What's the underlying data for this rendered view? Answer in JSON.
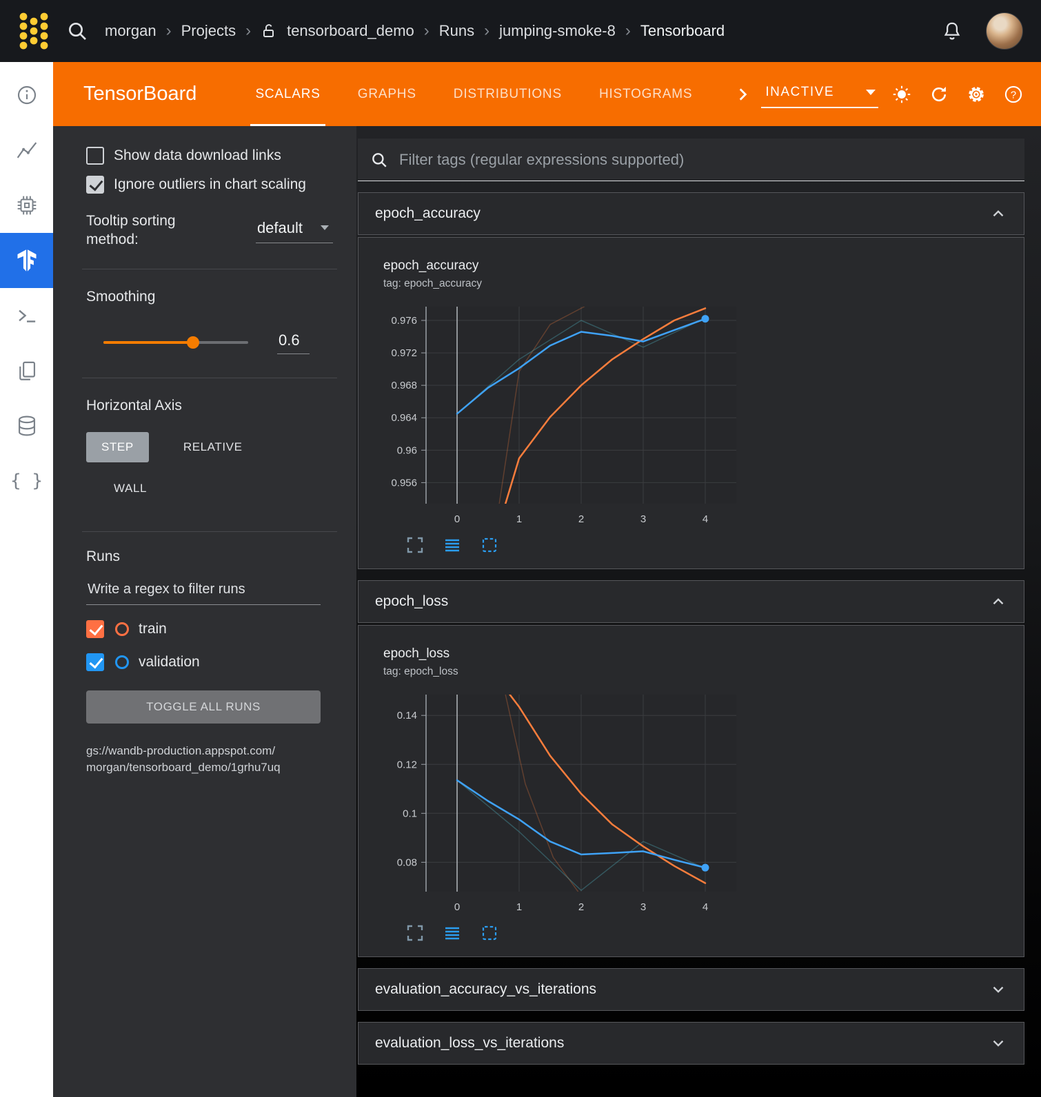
{
  "colors": {
    "header_orange": "#f76d00",
    "rail_active_blue": "#2170e8",
    "train_color": "#ff7043",
    "validation_color": "#2196f3",
    "train_line": "#f97d3c",
    "validation_line": "#3fa2f7",
    "logo_yellow": "#ffcc33"
  },
  "topbar": {
    "separator": "›",
    "breadcrumb": [
      "morgan",
      "Projects",
      "tensorboard_demo",
      "Runs",
      "jumping-smoke-8",
      "Tensorboard"
    ]
  },
  "tb_header": {
    "title": "TensorBoard",
    "tabs": [
      "SCALARS",
      "GRAPHS",
      "DISTRIBUTIONS",
      "HISTOGRAMS"
    ],
    "active_tab": "SCALARS",
    "status_label": "INACTIVE"
  },
  "sidebar": {
    "show_download_label": "Show data download links",
    "ignore_outliers_label": "Ignore outliers in chart scaling",
    "tooltip_sorting_label": "Tooltip sorting method:",
    "tooltip_sorting_value": "default",
    "smoothing_label": "Smoothing",
    "smoothing_value": "0.6",
    "horizontal_axis_label": "Horizontal Axis",
    "axis_step": "STEP",
    "axis_relative": "RELATIVE",
    "axis_wall": "WALL",
    "runs_label": "Runs",
    "runs_filter_placeholder": "Write a regex to filter runs",
    "run_train": "train",
    "run_validation": "validation",
    "toggle_all_label": "TOGGLE ALL RUNS",
    "storage_path_line1": "gs://wandb-production.appspot.com/",
    "storage_path_line2": "morgan/tensorboard_demo/1grhu7uq"
  },
  "main": {
    "filter_placeholder": "Filter tags (regular expressions supported)"
  },
  "sections": [
    {
      "title": "epoch_accuracy",
      "collapsed": false
    },
    {
      "title": "epoch_loss",
      "collapsed": false
    },
    {
      "title": "evaluation_accuracy_vs_iterations",
      "collapsed": true
    },
    {
      "title": "evaluation_loss_vs_iterations",
      "collapsed": true
    }
  ],
  "chart_data": [
    {
      "type": "line",
      "title": "epoch_accuracy",
      "tag": "tag: epoch_accuracy",
      "xlabel": "",
      "ylabel": "",
      "xlim": [
        -0.5,
        4.5
      ],
      "ylim": [
        0.9534,
        0.9777
      ],
      "xticks": [
        0,
        1,
        2,
        3,
        4
      ],
      "yticks": [
        0.956,
        0.96,
        0.964,
        0.968,
        0.972,
        0.976
      ],
      "grid": true,
      "legend": "none",
      "series": [
        {
          "name": "train (unsmoothed)",
          "color": "#f97d3c",
          "opacity": 0.28,
          "width": 1.5,
          "points": [
            [
              0.68,
              0.9534
            ],
            [
              1,
              0.9697
            ],
            [
              1.5,
              0.9755
            ],
            [
              2.05,
              0.9777
            ]
          ]
        },
        {
          "name": "validation (unsmoothed)",
          "color": "#56c8d8",
          "opacity": 0.3,
          "width": 1.5,
          "points": [
            [
              0,
              0.9645
            ],
            [
              1,
              0.9712
            ],
            [
              2,
              0.976
            ],
            [
              3,
              0.9727
            ],
            [
              4,
              0.9763
            ]
          ]
        },
        {
          "name": "train (smoothed 0.6)",
          "color": "#f97d3c",
          "opacity": 1,
          "width": 2.5,
          "points": [
            [
              0.78,
              0.9534
            ],
            [
              1,
              0.959
            ],
            [
              1.5,
              0.9641
            ],
            [
              2,
              0.968
            ],
            [
              2.5,
              0.9712
            ],
            [
              3,
              0.9737
            ],
            [
              3.5,
              0.976
            ],
            [
              4,
              0.9775
            ]
          ]
        },
        {
          "name": "validation (smoothed 0.6)",
          "color": "#3fa2f7",
          "opacity": 1,
          "width": 2.5,
          "end_marker": true,
          "points": [
            [
              0,
              0.9645
            ],
            [
              0.5,
              0.9677
            ],
            [
              1,
              0.9701
            ],
            [
              1.5,
              0.9729
            ],
            [
              2,
              0.9746
            ],
            [
              2.5,
              0.9741
            ],
            [
              3,
              0.9734
            ],
            [
              3.5,
              0.9748
            ],
            [
              4,
              0.9762
            ]
          ]
        }
      ]
    },
    {
      "type": "line",
      "title": "epoch_loss",
      "tag": "tag: epoch_loss",
      "xlabel": "",
      "ylabel": "",
      "xlim": [
        -0.5,
        4.5
      ],
      "ylim": [
        0.068,
        0.1485
      ],
      "xticks": [
        0,
        1,
        2,
        3,
        4
      ],
      "yticks": [
        0.08,
        0.1,
        0.12,
        0.14
      ],
      "grid": true,
      "legend": "none",
      "series": [
        {
          "name": "train (unsmoothed)",
          "color": "#f97d3c",
          "opacity": 0.28,
          "width": 1.5,
          "points": [
            [
              0.78,
              0.1485
            ],
            [
              1.1,
              0.112
            ],
            [
              1.55,
              0.082
            ],
            [
              1.95,
              0.068
            ]
          ]
        },
        {
          "name": "validation (unsmoothed)",
          "color": "#56c8d8",
          "opacity": 0.3,
          "width": 1.5,
          "points": [
            [
              0,
              0.1135
            ],
            [
              1,
              0.0925
            ],
            [
              2,
              0.0685
            ],
            [
              3,
              0.0885
            ],
            [
              4,
              0.0775
            ]
          ]
        },
        {
          "name": "train (smoothed 0.6)",
          "color": "#f97d3c",
          "opacity": 1,
          "width": 2.5,
          "points": [
            [
              0.85,
              0.1485
            ],
            [
              1,
              0.1435
            ],
            [
              1.5,
              0.1235
            ],
            [
              2,
              0.108
            ],
            [
              2.5,
              0.0955
            ],
            [
              3,
              0.0865
            ],
            [
              3.5,
              0.0785
            ],
            [
              4,
              0.0715
            ]
          ]
        },
        {
          "name": "validation (smoothed 0.6)",
          "color": "#3fa2f7",
          "opacity": 1,
          "width": 2.5,
          "end_marker": true,
          "points": [
            [
              0,
              0.1135
            ],
            [
              0.5,
              0.105
            ],
            [
              1,
              0.0975
            ],
            [
              1.5,
              0.0885
            ],
            [
              2,
              0.0832
            ],
            [
              2.5,
              0.0838
            ],
            [
              3,
              0.0845
            ],
            [
              3.5,
              0.081
            ],
            [
              4,
              0.0778
            ]
          ]
        }
      ]
    }
  ]
}
